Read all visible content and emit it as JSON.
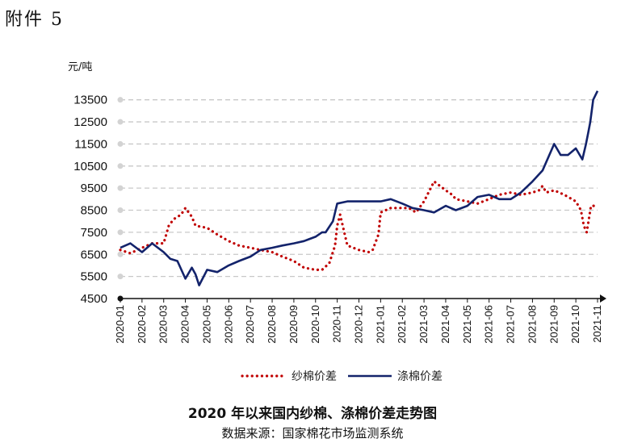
{
  "header": {
    "attachment_label": "附件 5"
  },
  "chart_data": {
    "type": "line",
    "title": "2020 年以来国内纱棉、涤棉价差走势图",
    "source": "数据来源：国家棉花市场监测系统",
    "ylabel": "元/吨",
    "xlabel": "",
    "ylim": [
      4500,
      14000
    ],
    "y_ticks": [
      4500,
      5500,
      6500,
      7500,
      8500,
      9500,
      10500,
      11500,
      12500,
      13500
    ],
    "x_ticks": [
      "2020-01",
      "2020-02",
      "2020-03",
      "2020-04",
      "2020-05",
      "2020-06",
      "2020-07",
      "2020-08",
      "2020-09",
      "2020-10",
      "2020-11",
      "2020-12",
      "2021-01",
      "2021-02",
      "2021-03",
      "2021-04",
      "2021-05",
      "2021-06",
      "2021-07",
      "2021-08",
      "2021-09",
      "2021-10",
      "2021-11"
    ],
    "x_range": [
      "2020-01",
      "2021-11"
    ],
    "grid": "horizontal-dashed",
    "legend_position": "bottom",
    "series": [
      {
        "name": "纱棉价差",
        "style": "dotted",
        "color": "#c00000",
        "x": [
          "2020-01",
          "2020-01-15",
          "2020-02",
          "2020-02-15",
          "2020-03",
          "2020-03-08",
          "2020-03-15",
          "2020-03-25",
          "2020-04",
          "2020-04-10",
          "2020-04-15",
          "2020-05",
          "2020-05-15",
          "2020-06",
          "2020-06-15",
          "2020-07",
          "2020-07-15",
          "2020-08",
          "2020-08-15",
          "2020-09",
          "2020-09-15",
          "2020-10",
          "2020-10-10",
          "2020-10-20",
          "2020-10-28",
          "2020-11",
          "2020-11-05",
          "2020-11-15",
          "2020-12",
          "2020-12-15",
          "2020-12-20",
          "2020-12-28",
          "2021-01",
          "2021-01-15",
          "2021-02",
          "2021-02-10",
          "2021-02-20",
          "2021-03",
          "2021-03-15",
          "2021-04",
          "2021-04-10",
          "2021-04-15",
          "2021-05",
          "2021-05-15",
          "2021-06",
          "2021-06-15",
          "2021-07",
          "2021-07-15",
          "2021-08",
          "2021-08-10",
          "2021-08-15",
          "2021-08-20",
          "2021-09",
          "2021-09-15",
          "2021-10",
          "2021-10-08",
          "2021-10-12",
          "2021-10-16",
          "2021-10-22",
          "2021-11"
        ],
        "values": [
          6700,
          6550,
          6800,
          7000,
          7000,
          7800,
          8100,
          8300,
          8600,
          8200,
          7800,
          7700,
          7400,
          7100,
          6900,
          6800,
          6700,
          6600,
          6400,
          6200,
          5900,
          5800,
          5800,
          6100,
          6900,
          7800,
          8300,
          6900,
          6700,
          6600,
          6700,
          7400,
          8400,
          8600,
          8600,
          8600,
          8400,
          8900,
          9800,
          9400,
          9200,
          9000,
          8900,
          8800,
          9000,
          9200,
          9300,
          9200,
          9300,
          9400,
          9600,
          9300,
          9400,
          9200,
          8900,
          8500,
          7800,
          7500,
          8700,
          8700
        ]
      },
      {
        "name": "涤棉价差",
        "style": "solid",
        "color": "#13236b",
        "x": [
          "2020-01",
          "2020-01-15",
          "2020-02",
          "2020-02-15",
          "2020-03",
          "2020-03-10",
          "2020-03-20",
          "2020-04",
          "2020-04-10",
          "2020-04-15",
          "2020-04-20",
          "2020-05",
          "2020-05-15",
          "2020-06",
          "2020-06-15",
          "2020-07",
          "2020-07-15",
          "2020-08",
          "2020-08-15",
          "2020-09",
          "2020-09-15",
          "2020-10",
          "2020-10-10",
          "2020-10-15",
          "2020-10-25",
          "2020-11",
          "2020-11-15",
          "2020-12",
          "2020-12-15",
          "2021-01",
          "2021-01-15",
          "2021-02",
          "2021-02-15",
          "2021-03",
          "2021-03-15",
          "2021-04",
          "2021-04-15",
          "2021-05",
          "2021-05-15",
          "2021-06",
          "2021-06-15",
          "2021-07",
          "2021-07-15",
          "2021-08",
          "2021-08-15",
          "2021-09",
          "2021-09-10",
          "2021-09-20",
          "2021-10",
          "2021-10-10",
          "2021-10-15",
          "2021-10-18",
          "2021-10-21",
          "2021-10-25",
          "2021-11"
        ],
        "values": [
          6800,
          7000,
          6600,
          7000,
          6600,
          6300,
          6200,
          5400,
          5900,
          5600,
          5100,
          5800,
          5700,
          6000,
          6200,
          6400,
          6700,
          6800,
          6900,
          7000,
          7100,
          7300,
          7500,
          7500,
          8000,
          8800,
          8900,
          8900,
          8900,
          8900,
          9000,
          8800,
          8600,
          8500,
          8400,
          8700,
          8500,
          8700,
          9100,
          9200,
          9000,
          9000,
          9300,
          9800,
          10300,
          11500,
          11000,
          11000,
          11300,
          10800,
          11500,
          12000,
          12500,
          13500,
          13900
        ]
      }
    ]
  }
}
